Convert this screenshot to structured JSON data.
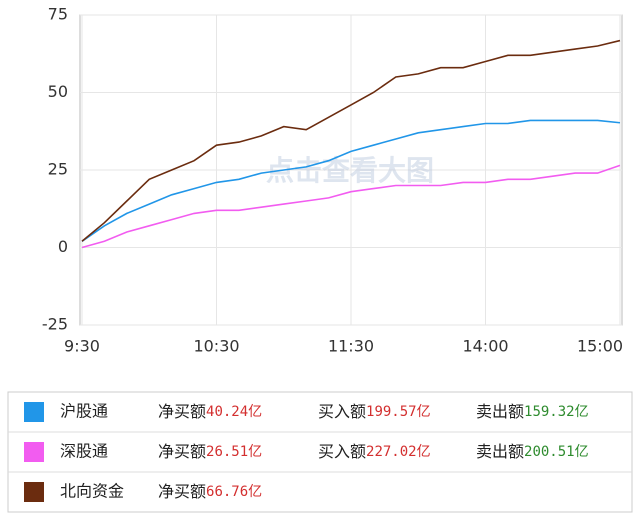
{
  "chart_data": {
    "type": "line",
    "categories": [
      "9:30",
      null,
      null,
      null,
      null,
      null,
      "10:30",
      null,
      null,
      null,
      null,
      null,
      "11:30",
      null,
      null,
      null,
      null,
      null,
      "14:00",
      null,
      null,
      null,
      null,
      null,
      "15:00"
    ],
    "ylim": [
      -25,
      75
    ],
    "yticks": [
      -25,
      0,
      25,
      50,
      75
    ],
    "grid": true,
    "watermark": "点击查看大图",
    "series": [
      {
        "name": "沪股通",
        "color": "#2196e8",
        "values": [
          2,
          7,
          11,
          14,
          17,
          19,
          21,
          22,
          24,
          25,
          26,
          28,
          31,
          33,
          35,
          37,
          38,
          39,
          40,
          40,
          41,
          41,
          41,
          41,
          40.24
        ]
      },
      {
        "name": "深股通",
        "color": "#f25cf0",
        "values": [
          0,
          2,
          5,
          7,
          9,
          11,
          12,
          12,
          13,
          14,
          15,
          16,
          18,
          19,
          20,
          20,
          20,
          21,
          21,
          22,
          22,
          23,
          24,
          24,
          26.51
        ]
      },
      {
        "name": "北向资金",
        "color": "#6b2c0f",
        "values": [
          2,
          8,
          15,
          22,
          25,
          28,
          33,
          34,
          36,
          39,
          38,
          42,
          46,
          50,
          55,
          56,
          58,
          58,
          60,
          62,
          62,
          63,
          64,
          65,
          66.76
        ]
      }
    ]
  },
  "summary": {
    "rows": [
      {
        "net_label": "净买额",
        "net": "40.24亿",
        "buy_label": "买入额",
        "buy": "199.57亿",
        "sell_label": "卖出额",
        "sell": "159.32亿"
      },
      {
        "net_label": "净买额",
        "net": "26.51亿",
        "buy_label": "买入额",
        "buy": "227.02亿",
        "sell_label": "卖出额",
        "sell": "200.51亿"
      },
      {
        "net_label": "净买额",
        "net": "66.76亿"
      }
    ]
  }
}
